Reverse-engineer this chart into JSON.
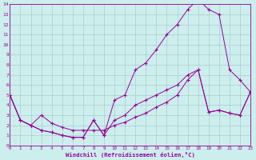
{
  "background_color": "#cceeed",
  "grid_color": "#aacccc",
  "line_color": "#990099",
  "xlim": [
    0,
    23
  ],
  "ylim": [
    0,
    14
  ],
  "xlabel": "Windchill (Refroidissement éolien,°C)",
  "xticks": [
    0,
    1,
    2,
    3,
    4,
    5,
    6,
    7,
    8,
    9,
    10,
    11,
    12,
    13,
    14,
    15,
    16,
    17,
    18,
    19,
    20,
    21,
    22,
    23
  ],
  "yticks": [
    0,
    1,
    2,
    3,
    4,
    5,
    6,
    7,
    8,
    9,
    10,
    11,
    12,
    13,
    14
  ],
  "line1_x": [
    0,
    1,
    2,
    3,
    4,
    5,
    6,
    7,
    8,
    9,
    10,
    11,
    12,
    13,
    14,
    15,
    16,
    17,
    18,
    19,
    20,
    21,
    22,
    23
  ],
  "line1_y": [
    5.0,
    2.5,
    2.0,
    1.5,
    1.3,
    1.0,
    0.8,
    0.8,
    2.5,
    1.0,
    4.5,
    5.0,
    7.5,
    8.2,
    9.5,
    11.0,
    12.0,
    13.5,
    14.5,
    13.5,
    13.0,
    7.5,
    6.5,
    5.3
  ],
  "line2_x": [
    0,
    1,
    2,
    3,
    4,
    5,
    6,
    7,
    8,
    9,
    10,
    11,
    12,
    13,
    14,
    15,
    16,
    17,
    18,
    19,
    20,
    21,
    22,
    23
  ],
  "line2_y": [
    5.0,
    2.5,
    2.0,
    3.0,
    2.2,
    1.8,
    1.5,
    1.5,
    1.5,
    1.5,
    2.0,
    2.3,
    2.8,
    3.2,
    3.8,
    4.3,
    5.0,
    6.5,
    7.5,
    3.3,
    3.5,
    3.2,
    3.0,
    5.3
  ],
  "line3_x": [
    0,
    1,
    2,
    3,
    4,
    5,
    6,
    7,
    8,
    9,
    10,
    11,
    12,
    13,
    14,
    15,
    16,
    17,
    18,
    19,
    20,
    21,
    22,
    23
  ],
  "line3_y": [
    5.0,
    2.5,
    2.0,
    1.5,
    1.3,
    1.0,
    0.8,
    0.8,
    2.5,
    1.0,
    2.5,
    3.0,
    4.0,
    4.5,
    5.0,
    5.5,
    6.0,
    7.0,
    7.5,
    3.3,
    3.5,
    3.2,
    3.0,
    5.3
  ]
}
